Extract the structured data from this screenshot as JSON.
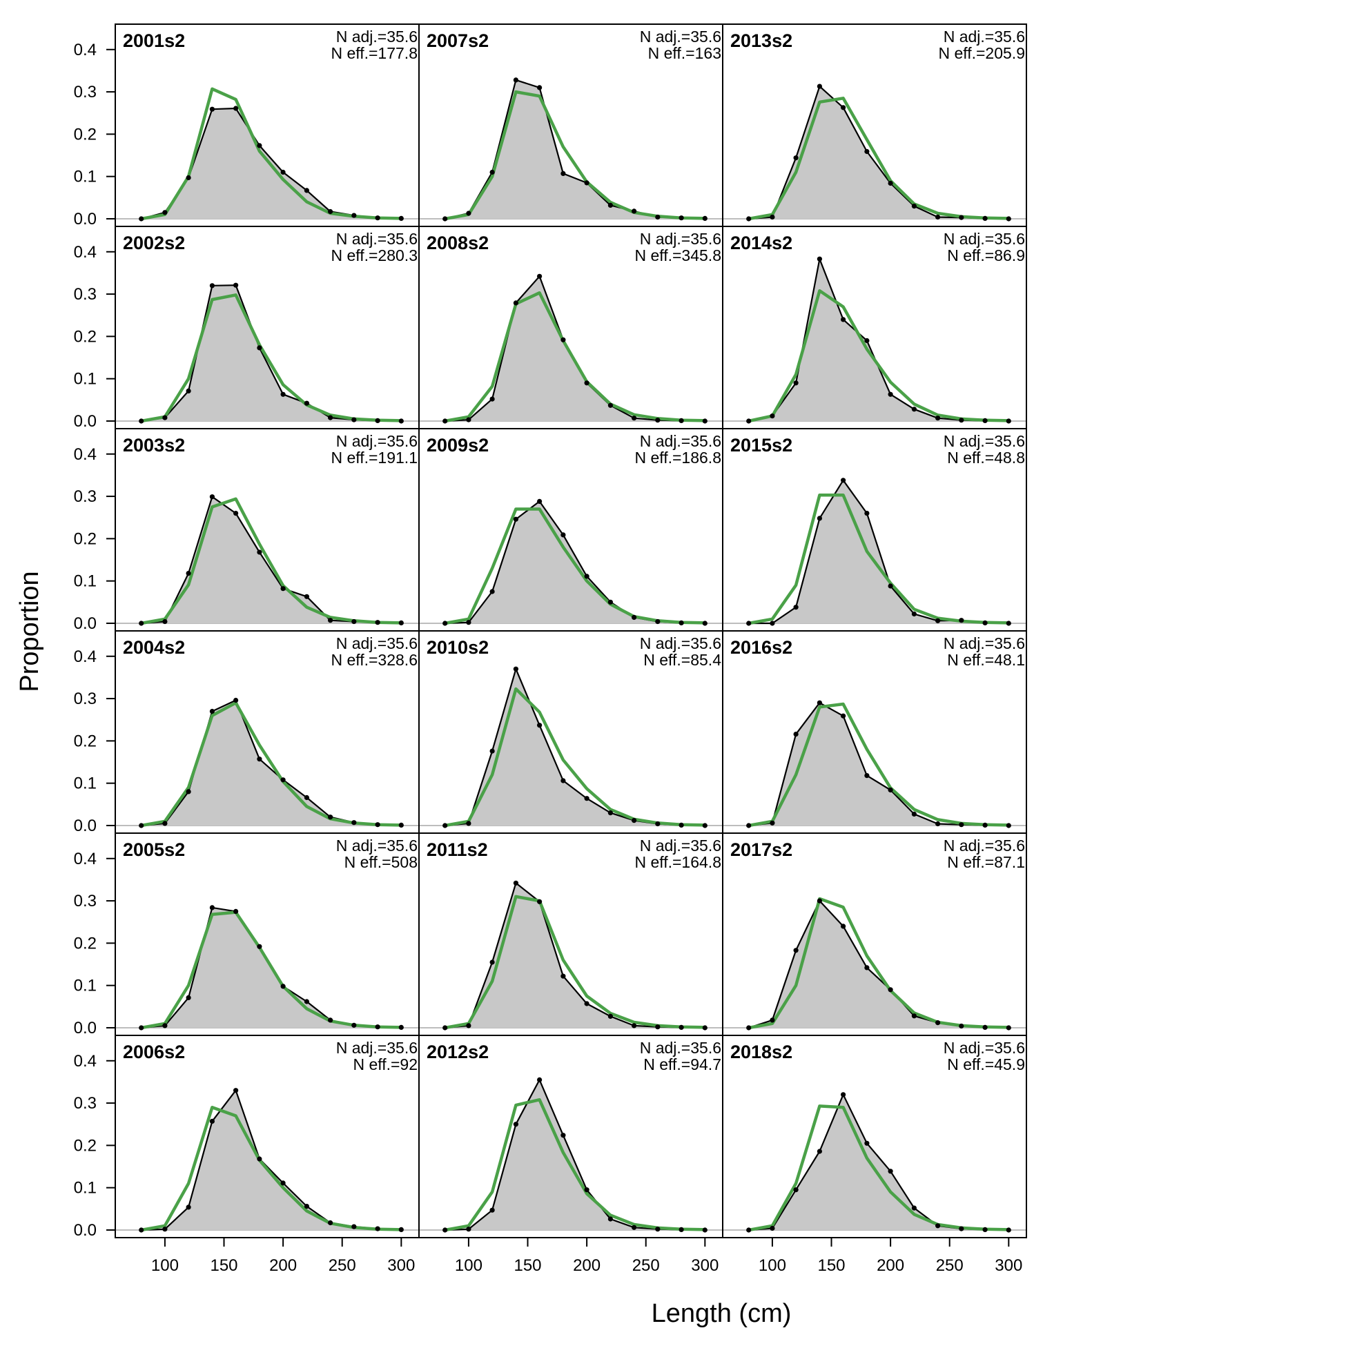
{
  "chart_data": {
    "type": "area",
    "xlabel": "Length (cm)",
    "ylabel": "Proportion",
    "xlim": [
      58,
      315
    ],
    "ylim": [
      -0.018,
      0.46
    ],
    "x_ticks": [
      100,
      150,
      200,
      250,
      300
    ],
    "x_tick_labels": [
      "100",
      "150",
      "200",
      "250",
      "300"
    ],
    "y_ticks": [
      0,
      0.1,
      0.2,
      0.3,
      0.4
    ],
    "y_tick_labels": [
      "0.0",
      "0.1",
      "0.2",
      "0.3",
      "0.4"
    ],
    "x": [
      80,
      100,
      120,
      140,
      160,
      180,
      200,
      220,
      240,
      260,
      280,
      300
    ],
    "grid": false,
    "legend": "none",
    "colors": {
      "observed_fill": "#c8c8c8",
      "observed_line": "#000000",
      "expected_line": "#4aa148",
      "zero_line": "#bdbdbd"
    },
    "panels": [
      {
        "title": "2001s2",
        "n_adj": "N adj.=35.6",
        "n_eff": "N eff.=177.8",
        "observed": [
          0.0,
          0.015,
          0.097,
          0.259,
          0.261,
          0.173,
          0.11,
          0.067,
          0.017,
          0.008,
          0.002,
          0.001
        ],
        "expected": [
          0.0,
          0.01,
          0.1,
          0.307,
          0.282,
          0.16,
          0.093,
          0.04,
          0.013,
          0.006,
          0.002,
          0.001
        ]
      },
      {
        "title": "2002s2",
        "n_adj": "N adj.=35.6",
        "n_eff": "N eff.=280.3",
        "observed": [
          0.0,
          0.008,
          0.071,
          0.32,
          0.321,
          0.173,
          0.063,
          0.042,
          0.008,
          0.003,
          0.001,
          0.0
        ],
        "expected": [
          0.0,
          0.01,
          0.1,
          0.287,
          0.298,
          0.18,
          0.086,
          0.038,
          0.014,
          0.005,
          0.002,
          0.001
        ]
      },
      {
        "title": "2003s2",
        "n_adj": "N adj.=35.6",
        "n_eff": "N eff.=191.1",
        "observed": [
          0.0,
          0.004,
          0.118,
          0.299,
          0.26,
          0.168,
          0.082,
          0.063,
          0.007,
          0.004,
          0.002,
          0.001
        ],
        "expected": [
          0.0,
          0.01,
          0.091,
          0.275,
          0.294,
          0.187,
          0.089,
          0.038,
          0.014,
          0.006,
          0.002,
          0.001
        ]
      },
      {
        "title": "2004s2",
        "n_adj": "N adj.=35.6",
        "n_eff": "N eff.=328.6",
        "observed": [
          0.0,
          0.005,
          0.08,
          0.27,
          0.296,
          0.157,
          0.108,
          0.066,
          0.02,
          0.007,
          0.002,
          0.001
        ],
        "expected": [
          0.0,
          0.01,
          0.09,
          0.26,
          0.29,
          0.19,
          0.104,
          0.045,
          0.016,
          0.006,
          0.002,
          0.001
        ]
      },
      {
        "title": "2005s2",
        "n_adj": "N adj.=35.6",
        "n_eff": "N eff.=508",
        "observed": [
          0.0,
          0.005,
          0.071,
          0.284,
          0.275,
          0.192,
          0.098,
          0.062,
          0.018,
          0.006,
          0.002,
          0.001
        ],
        "expected": [
          0.0,
          0.01,
          0.1,
          0.268,
          0.273,
          0.19,
          0.098,
          0.045,
          0.016,
          0.006,
          0.002,
          0.001
        ]
      },
      {
        "title": "2006s2",
        "n_adj": "N adj.=35.6",
        "n_eff": "N eff.=92",
        "observed": [
          0.0,
          0.002,
          0.054,
          0.257,
          0.33,
          0.168,
          0.111,
          0.056,
          0.017,
          0.008,
          0.003,
          0.001
        ],
        "expected": [
          0.0,
          0.01,
          0.11,
          0.29,
          0.27,
          0.165,
          0.1,
          0.045,
          0.016,
          0.006,
          0.002,
          0.001
        ]
      },
      {
        "title": "2007s2",
        "n_adj": "N adj.=35.6",
        "n_eff": "N eff.=163",
        "observed": [
          0.0,
          0.013,
          0.11,
          0.328,
          0.31,
          0.107,
          0.085,
          0.032,
          0.018,
          0.004,
          0.002,
          0.001
        ],
        "expected": [
          0.0,
          0.01,
          0.1,
          0.3,
          0.29,
          0.17,
          0.087,
          0.039,
          0.015,
          0.006,
          0.002,
          0.001
        ]
      },
      {
        "title": "2008s2",
        "n_adj": "N adj.=35.6",
        "n_eff": "N eff.=345.8",
        "observed": [
          0.0,
          0.003,
          0.052,
          0.279,
          0.342,
          0.192,
          0.09,
          0.037,
          0.007,
          0.002,
          0.001,
          0.0
        ],
        "expected": [
          0.0,
          0.01,
          0.082,
          0.277,
          0.303,
          0.19,
          0.093,
          0.04,
          0.015,
          0.006,
          0.002,
          0.001
        ]
      },
      {
        "title": "2009s2",
        "n_adj": "N adj.=35.6",
        "n_eff": "N eff.=186.8",
        "observed": [
          0.0,
          0.002,
          0.075,
          0.246,
          0.288,
          0.209,
          0.111,
          0.05,
          0.014,
          0.004,
          0.001,
          0.0
        ],
        "expected": [
          0.0,
          0.01,
          0.13,
          0.27,
          0.27,
          0.18,
          0.1,
          0.045,
          0.016,
          0.006,
          0.002,
          0.001
        ]
      },
      {
        "title": "2010s2",
        "n_adj": "N adj.=35.6",
        "n_eff": "N eff.=85.4",
        "observed": [
          0.0,
          0.005,
          0.176,
          0.37,
          0.237,
          0.106,
          0.064,
          0.03,
          0.012,
          0.004,
          0.001,
          0.0
        ],
        "expected": [
          0.0,
          0.01,
          0.12,
          0.323,
          0.268,
          0.155,
          0.087,
          0.038,
          0.015,
          0.006,
          0.002,
          0.001
        ]
      },
      {
        "title": "2011s2",
        "n_adj": "N adj.=35.6",
        "n_eff": "N eff.=164.8",
        "observed": [
          0.0,
          0.005,
          0.155,
          0.342,
          0.298,
          0.122,
          0.057,
          0.027,
          0.005,
          0.002,
          0.001,
          0.0
        ],
        "expected": [
          0.0,
          0.01,
          0.11,
          0.31,
          0.3,
          0.16,
          0.075,
          0.034,
          0.013,
          0.005,
          0.002,
          0.001
        ]
      },
      {
        "title": "2012s2",
        "n_adj": "N adj.=35.6",
        "n_eff": "N eff.=94.7",
        "observed": [
          0.0,
          0.002,
          0.047,
          0.25,
          0.355,
          0.224,
          0.095,
          0.026,
          0.006,
          0.002,
          0.001,
          0.0
        ],
        "expected": [
          0.0,
          0.01,
          0.09,
          0.295,
          0.308,
          0.183,
          0.086,
          0.035,
          0.013,
          0.005,
          0.002,
          0.001
        ]
      },
      {
        "title": "2013s2",
        "n_adj": "N adj.=35.6",
        "n_eff": "N eff.=205.9",
        "observed": [
          0.0,
          0.004,
          0.144,
          0.313,
          0.263,
          0.159,
          0.084,
          0.03,
          0.004,
          0.003,
          0.001,
          0.0
        ],
        "expected": [
          0.0,
          0.01,
          0.11,
          0.276,
          0.285,
          0.187,
          0.09,
          0.035,
          0.013,
          0.005,
          0.002,
          0.001
        ]
      },
      {
        "title": "2014s2",
        "n_adj": "N adj.=35.6",
        "n_eff": "N eff.=86.9",
        "observed": [
          0.0,
          0.012,
          0.09,
          0.383,
          0.24,
          0.19,
          0.063,
          0.028,
          0.007,
          0.002,
          0.001,
          0.0
        ],
        "expected": [
          0.0,
          0.012,
          0.11,
          0.308,
          0.27,
          0.17,
          0.092,
          0.04,
          0.014,
          0.005,
          0.002,
          0.001
        ]
      },
      {
        "title": "2015s2",
        "n_adj": "N adj.=35.6",
        "n_eff": "N eff.=48.8",
        "observed": [
          0.0,
          0.0,
          0.038,
          0.248,
          0.338,
          0.26,
          0.088,
          0.022,
          0.006,
          0.007,
          0.001,
          0.0
        ],
        "expected": [
          0.0,
          0.01,
          0.09,
          0.303,
          0.303,
          0.17,
          0.095,
          0.033,
          0.012,
          0.005,
          0.002,
          0.001
        ]
      },
      {
        "title": "2016s2",
        "n_adj": "N adj.=35.6",
        "n_eff": "N eff.=48.1",
        "observed": [
          0.0,
          0.006,
          0.216,
          0.29,
          0.259,
          0.118,
          0.084,
          0.027,
          0.004,
          0.002,
          0.001,
          0.0
        ],
        "expected": [
          0.0,
          0.01,
          0.12,
          0.28,
          0.287,
          0.18,
          0.089,
          0.038,
          0.014,
          0.005,
          0.002,
          0.001
        ]
      },
      {
        "title": "2017s2",
        "n_adj": "N adj.=35.6",
        "n_eff": "N eff.=87.1",
        "observed": [
          0.0,
          0.018,
          0.183,
          0.3,
          0.24,
          0.142,
          0.09,
          0.028,
          0.012,
          0.004,
          0.001,
          0.0
        ],
        "expected": [
          0.0,
          0.01,
          0.1,
          0.305,
          0.285,
          0.17,
          0.088,
          0.035,
          0.013,
          0.005,
          0.002,
          0.001
        ]
      },
      {
        "title": "2018s2",
        "n_adj": "N adj.=35.6",
        "n_eff": "N eff.=45.9",
        "observed": [
          0.0,
          0.004,
          0.095,
          0.186,
          0.32,
          0.205,
          0.139,
          0.052,
          0.01,
          0.003,
          0.001,
          0.0
        ],
        "expected": [
          0.0,
          0.01,
          0.11,
          0.293,
          0.29,
          0.17,
          0.09,
          0.037,
          0.013,
          0.005,
          0.002,
          0.001
        ]
      }
    ]
  }
}
